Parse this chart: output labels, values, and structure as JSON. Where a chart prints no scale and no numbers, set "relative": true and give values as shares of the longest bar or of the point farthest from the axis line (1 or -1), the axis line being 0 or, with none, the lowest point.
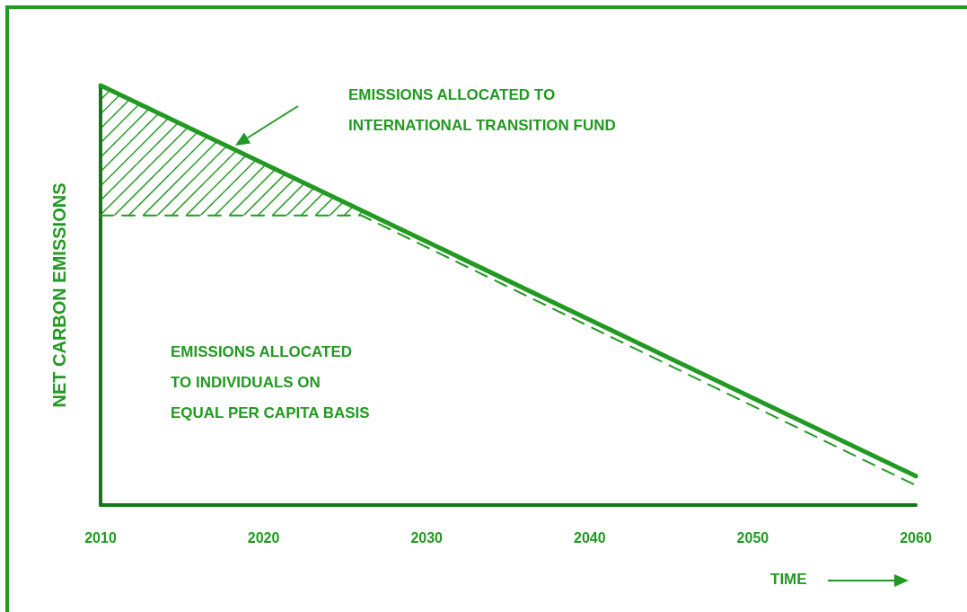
{
  "chart_data": {
    "type": "line",
    "relative": true,
    "ylabel": "NET CARBON EMISSIONS",
    "xlabel": "TIME",
    "xlim": [
      2010,
      2060
    ],
    "xticks": [
      2010,
      2020,
      2030,
      2040,
      2050,
      2060
    ],
    "grid": false,
    "marker": "none",
    "series": [
      {
        "color": "#229922",
        "line_style": "dashed",
        "x": [
          2010,
          2026,
          2060
        ],
        "values": [
          0.69,
          0.69,
          0.047
        ]
      },
      {
        "color": "#229922",
        "line_style": "solid",
        "x": [
          2010,
          2060
        ],
        "values": [
          1,
          0.069
        ]
      }
    ],
    "annotations": [
      "EMISSIONS ALLOCATED TO\nINTERNATIONAL TRANSITION FUND",
      "EMISSIONS ALLOCATED\nTO INDIVIDUALS ON\nEQUAL PER CAPITA BASIS"
    ]
  }
}
